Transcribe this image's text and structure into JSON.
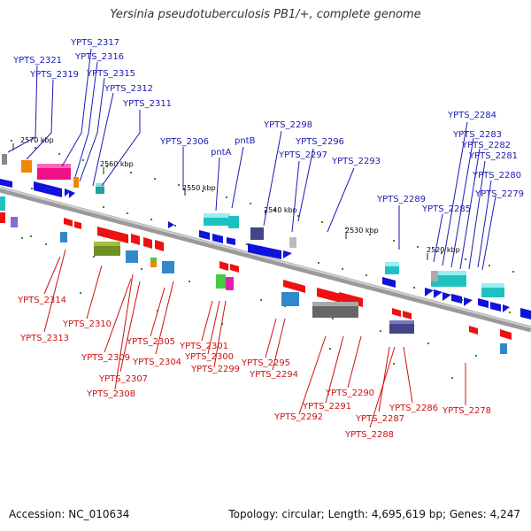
{
  "title": "Yersinia pseudotuberculosis PB1/+, complete genome",
  "footer": {
    "accession": "Accession: NC_010634",
    "summary": "Topology: circular; Length: 4,695,619 bp; Genes: 4,247"
  },
  "colors": {
    "top_strand_label": "#1a1ab4",
    "bottom_strand_label": "#cc1111",
    "backbone": "#888888"
  },
  "ruler": [
    "2570 kbp",
    "2560 kbp",
    "2550 kbp",
    "2540 kbp",
    "2530 kbp",
    "2520 kbp"
  ],
  "top_labels": [
    "YPTS_2321",
    "YPTS_2319",
    "YPTS_2317",
    "YPTS_2316",
    "YPTS_2315",
    "YPTS_2312",
    "YPTS_2311",
    "YPTS_2306",
    "pntA",
    "pntB",
    "YPTS_2298",
    "YPTS_2297",
    "YPTS_2296",
    "YPTS_2293",
    "YPTS_2289",
    "YPTS_2285",
    "YPTS_2284",
    "YPTS_2283",
    "YPTS_2282",
    "YPTS_2281",
    "YPTS_2280",
    "YPTS_2279"
  ],
  "bottom_labels": [
    "YPTS_2314",
    "YPTS_2313",
    "YPTS_2310",
    "YPTS_2309",
    "YPTS_2307",
    "YPTS_2308",
    "YPTS_2305",
    "YPTS_2304",
    "YPTS_2301",
    "YPTS_2300",
    "YPTS_2299",
    "YPTS_2295",
    "YPTS_2294",
    "YPTS_2292",
    "YPTS_2291",
    "YPTS_2290",
    "YPTS_2287",
    "YPTS_2288",
    "YPTS_2286",
    "YPTS_2278"
  ]
}
